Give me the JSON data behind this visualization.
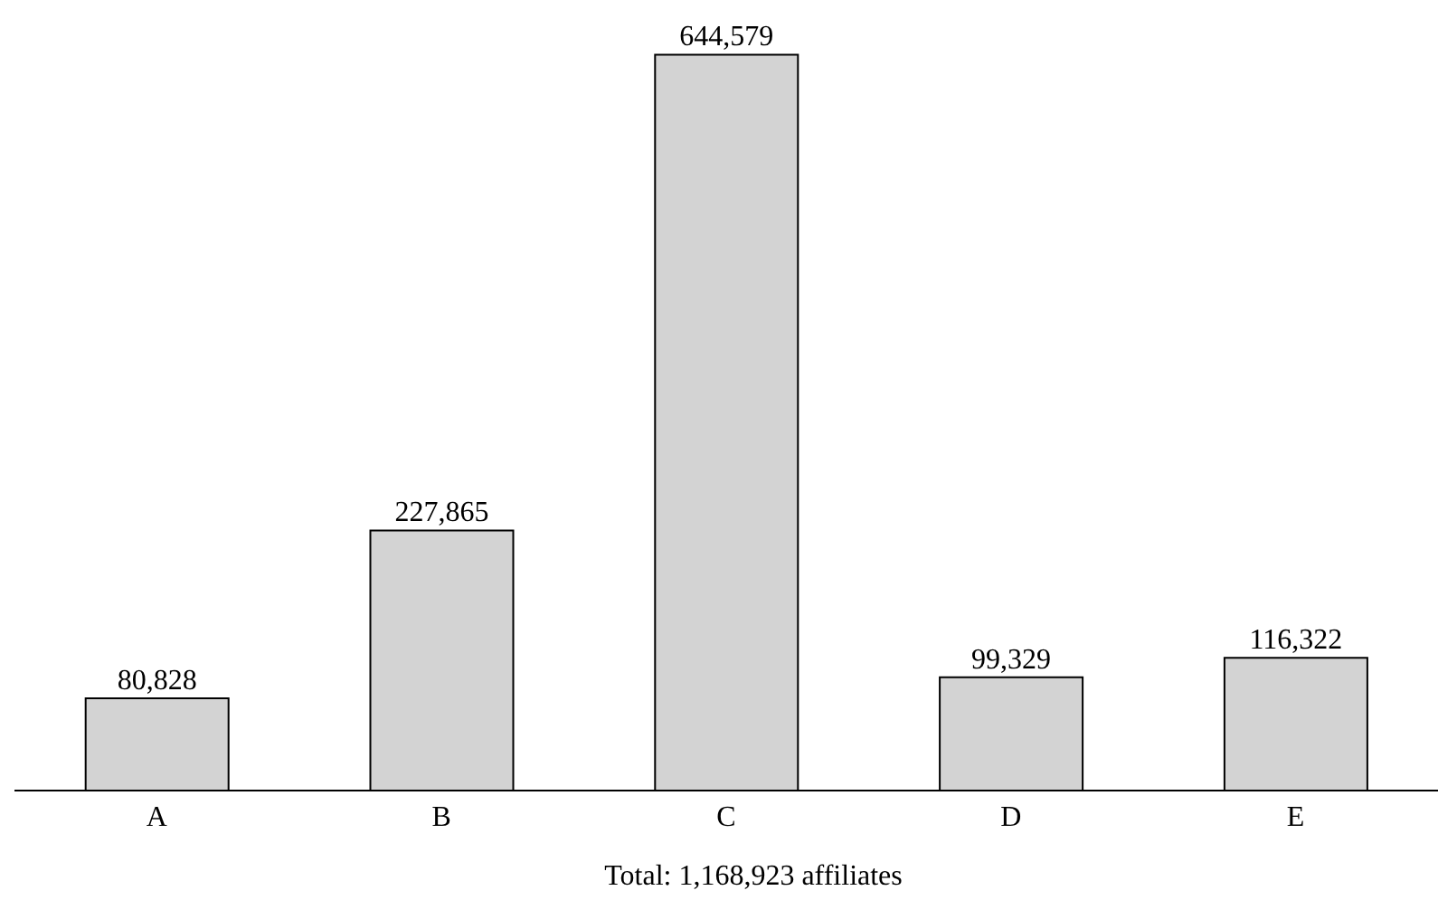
{
  "chart_data": {
    "type": "bar",
    "categories": [
      "A",
      "B",
      "C",
      "D",
      "E"
    ],
    "values": [
      80828,
      227865,
      644579,
      99329,
      116322
    ],
    "color": "#d3d3d3",
    "value_labels": [
      "80,828",
      "227,865",
      "644,579",
      "99,329",
      "116,322"
    ],
    "annotations": [
      "Total: 1,168,923 affiliates"
    ],
    "grid": false,
    "legend": false
  }
}
